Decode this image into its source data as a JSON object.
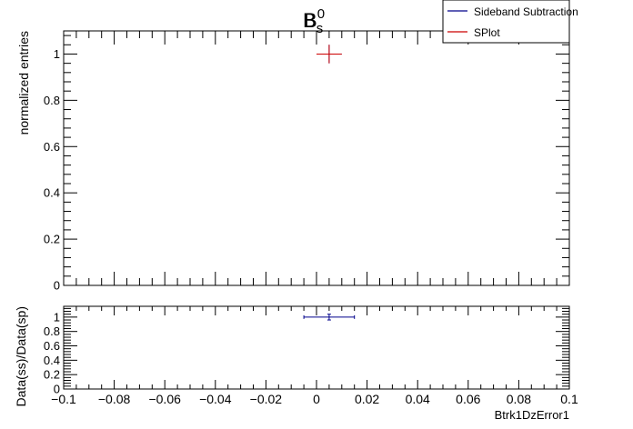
{
  "title": {
    "overlay_a": "B",
    "overlay_a_sup": "0",
    "overlay_b": "B",
    "overlay_b_sub": "s"
  },
  "legend": {
    "items": [
      {
        "label": "Sideband Subtraction",
        "color": "#00008b"
      },
      {
        "label": "SPlot",
        "color": "#cc0000"
      }
    ]
  },
  "chart_data": [
    {
      "type": "scatter",
      "name": "main",
      "ylabel": "normalized entries",
      "xlim": [
        -0.1,
        0.1
      ],
      "ylim": [
        0,
        1.1
      ],
      "x_ticks": [
        -0.1,
        -0.08,
        -0.06,
        -0.04,
        -0.02,
        0,
        0.02,
        0.04,
        0.06,
        0.08,
        0.1
      ],
      "y_ticks": [
        0,
        0.2,
        0.4,
        0.6,
        0.8,
        1
      ],
      "y_tick_labels": [
        "0",
        "0.2",
        "0.4",
        "0.6",
        "0.8",
        "1"
      ],
      "grid": false,
      "legend_position": "top-right",
      "series": [
        {
          "name": "Sideband Subtraction",
          "color": "#00008b",
          "points": [
            {
              "x": 0.005,
              "y": 1.0,
              "xerr": 0.005,
              "yerr": 0.04
            }
          ]
        },
        {
          "name": "SPlot",
          "color": "#cc0000",
          "points": [
            {
              "x": 0.005,
              "y": 1.0,
              "xerr": 0.005,
              "yerr": 0.04
            }
          ]
        }
      ]
    },
    {
      "type": "scatter",
      "name": "ratio",
      "xlabel": "Btrk1DzError1",
      "ylabel": "Data(ss)/Data(sp)",
      "xlim": [
        -0.1,
        0.1
      ],
      "ylim": [
        0,
        1.15
      ],
      "x_ticks": [
        -0.1,
        -0.08,
        -0.06,
        -0.04,
        -0.02,
        0,
        0.02,
        0.04,
        0.06,
        0.08,
        0.1
      ],
      "x_tick_labels": [
        "−0.1",
        "−0.08",
        "−0.06",
        "−0.04",
        "−0.02",
        "0",
        "0.02",
        "0.04",
        "0.06",
        "0.08",
        "0.1"
      ],
      "y_ticks": [
        0,
        0.2,
        0.4,
        0.6,
        0.8,
        1
      ],
      "y_tick_labels": [
        "0",
        "0.2",
        "0.4",
        "0.6",
        "0.8",
        "1"
      ],
      "grid": false,
      "series": [
        {
          "name": "ratio",
          "color": "#00008b",
          "points": [
            {
              "x": 0.005,
              "y": 1.0,
              "xerr": 0.01,
              "yerr": 0.04
            }
          ]
        }
      ]
    }
  ]
}
